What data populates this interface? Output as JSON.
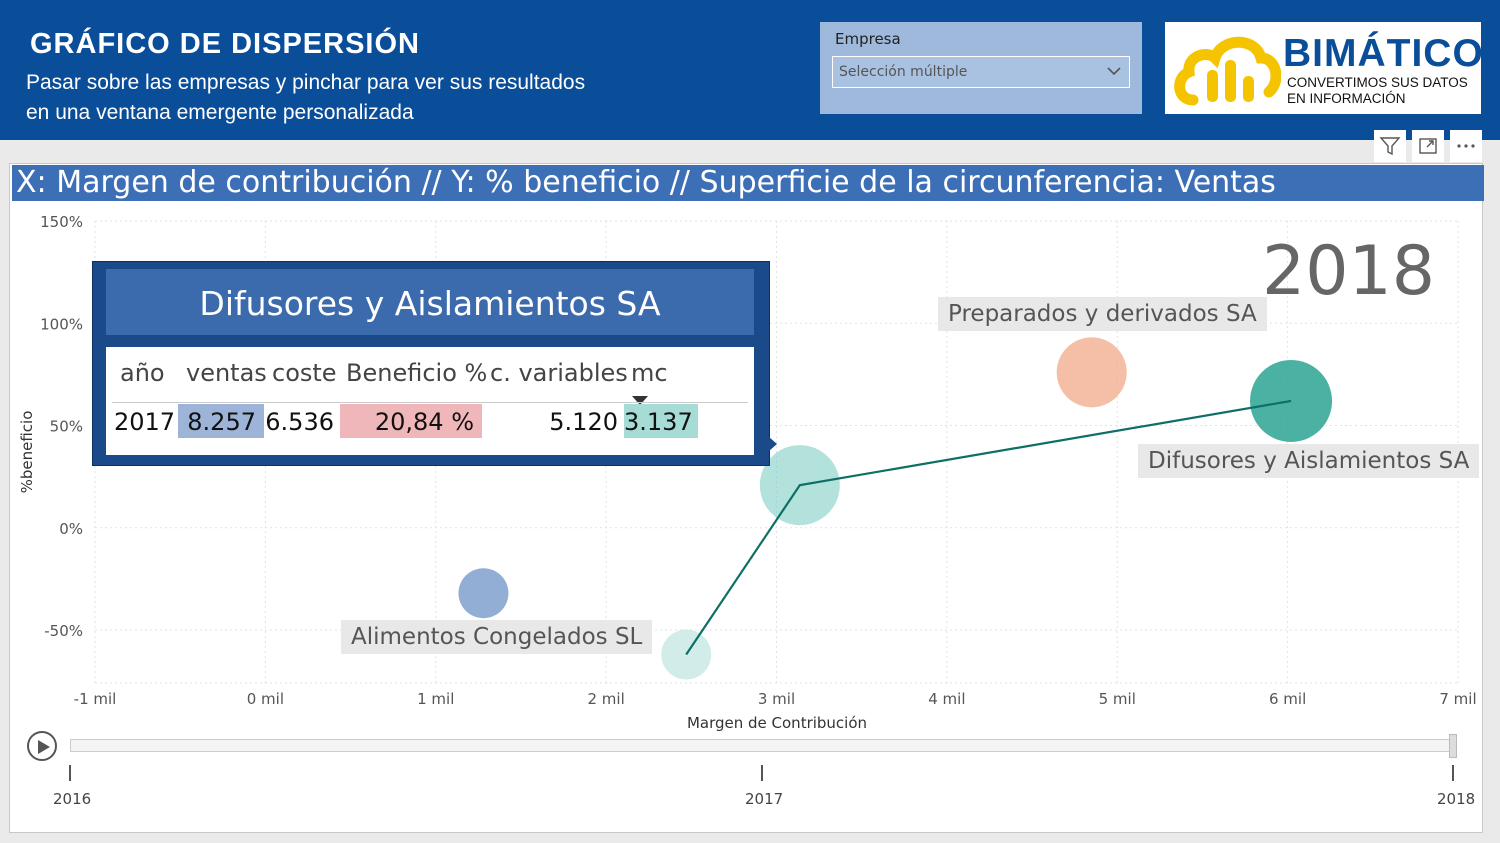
{
  "header": {
    "title": "GRÁFICO DE DISPERSIÓN",
    "subtitle": "Pasar sobre las empresas y pinchar para ver sus resultados en una ventana emergente personalizada"
  },
  "slicer": {
    "label": "Empresa",
    "value": "Selección múltiple"
  },
  "logo": {
    "name": "BIMÁTICO",
    "tagline": "CONVERTIMOS SUS DATOS EN INFORMACIÓN",
    "icon": "cloud-chart-icon",
    "color_brand": "#0a4e9a",
    "color_icon": "#f5c400"
  },
  "visual_header": {
    "icons": [
      "filter-icon",
      "focus-mode-icon",
      "more-options-icon"
    ]
  },
  "chart": {
    "title": "X: Margen de contribución // Y: % beneficio // Superficie de la circunferencia: Ventas",
    "play_year": "2018",
    "colors": {
      "title_bar": "#3d6fb6",
      "trail": "#0e6f66"
    }
  },
  "tooltip": {
    "title": "Difusores y Aislamientos SA",
    "columns": [
      "año",
      "ventas",
      "coste",
      "Beneficio %",
      "c. variables",
      "mc"
    ],
    "row": [
      "2017",
      "8.257",
      "6.536",
      "20,84 %",
      "5.120",
      "3.137"
    ],
    "sort_indicator": "sort-descending-icon",
    "colors": {
      "ventas": "#9db3d8",
      "beneficio": "#f0b7bb",
      "mc": "#a6dcd5"
    }
  },
  "play_axis": {
    "labels": [
      "2016",
      "2017",
      "2018"
    ],
    "current": "2018",
    "icon": "play-icon"
  },
  "chart_data": {
    "type": "scatter",
    "title": "X: Margen de contribución // Y: % beneficio // Superficie de la circunferencia: Ventas",
    "xlabel": "Margen de Contribución",
    "ylabel": "%beneficio",
    "xlim": [
      -1000,
      7000
    ],
    "ylim": [
      -80,
      150
    ],
    "xticks": [
      -1000,
      0,
      1000,
      2000,
      3000,
      4000,
      5000,
      6000,
      7000
    ],
    "xtick_labels": [
      "-1 mil",
      "0 mil",
      "1 mil",
      "2 mil",
      "3 mil",
      "4 mil",
      "5 mil",
      "6 mil",
      "7 mil"
    ],
    "yticks": [
      150,
      100,
      50,
      0,
      -50
    ],
    "ytick_labels": [
      "150%",
      "100%",
      "50%",
      "0%",
      "-50%"
    ],
    "grid": true,
    "points": [
      {
        "name": "Alimentos Congelados SL",
        "x": 1280,
        "y": -32,
        "size": 25,
        "color": "#6f93c6",
        "opacity": 0.75,
        "label": "Alimentos Congelados SL"
      },
      {
        "name": "Preparados y derivados SA",
        "x": 4850,
        "y": 76,
        "size": 35,
        "color": "#f2a98a",
        "opacity": 0.75,
        "label": "Preparados y derivados SA"
      },
      {
        "name": "Difusores y Aislamientos SA",
        "x": 6020,
        "y": 62,
        "size": 41,
        "color": "#2aa393",
        "opacity": 0.85,
        "label": "Difusores y Aislamientos SA"
      },
      {
        "name": "Difusores y Aislamientos SA 2017",
        "x": 3137,
        "y": 20.84,
        "size": 40,
        "color": "#7fcfc3",
        "opacity": 0.6
      },
      {
        "name": "Difusores y Aislamientos SA 2016",
        "x": 2470,
        "y": -62,
        "size": 25,
        "color": "#bfe6df",
        "opacity": 0.7
      }
    ],
    "trail": [
      [
        2470,
        -62
      ],
      [
        3137,
        20.84
      ],
      [
        6020,
        62
      ]
    ]
  }
}
